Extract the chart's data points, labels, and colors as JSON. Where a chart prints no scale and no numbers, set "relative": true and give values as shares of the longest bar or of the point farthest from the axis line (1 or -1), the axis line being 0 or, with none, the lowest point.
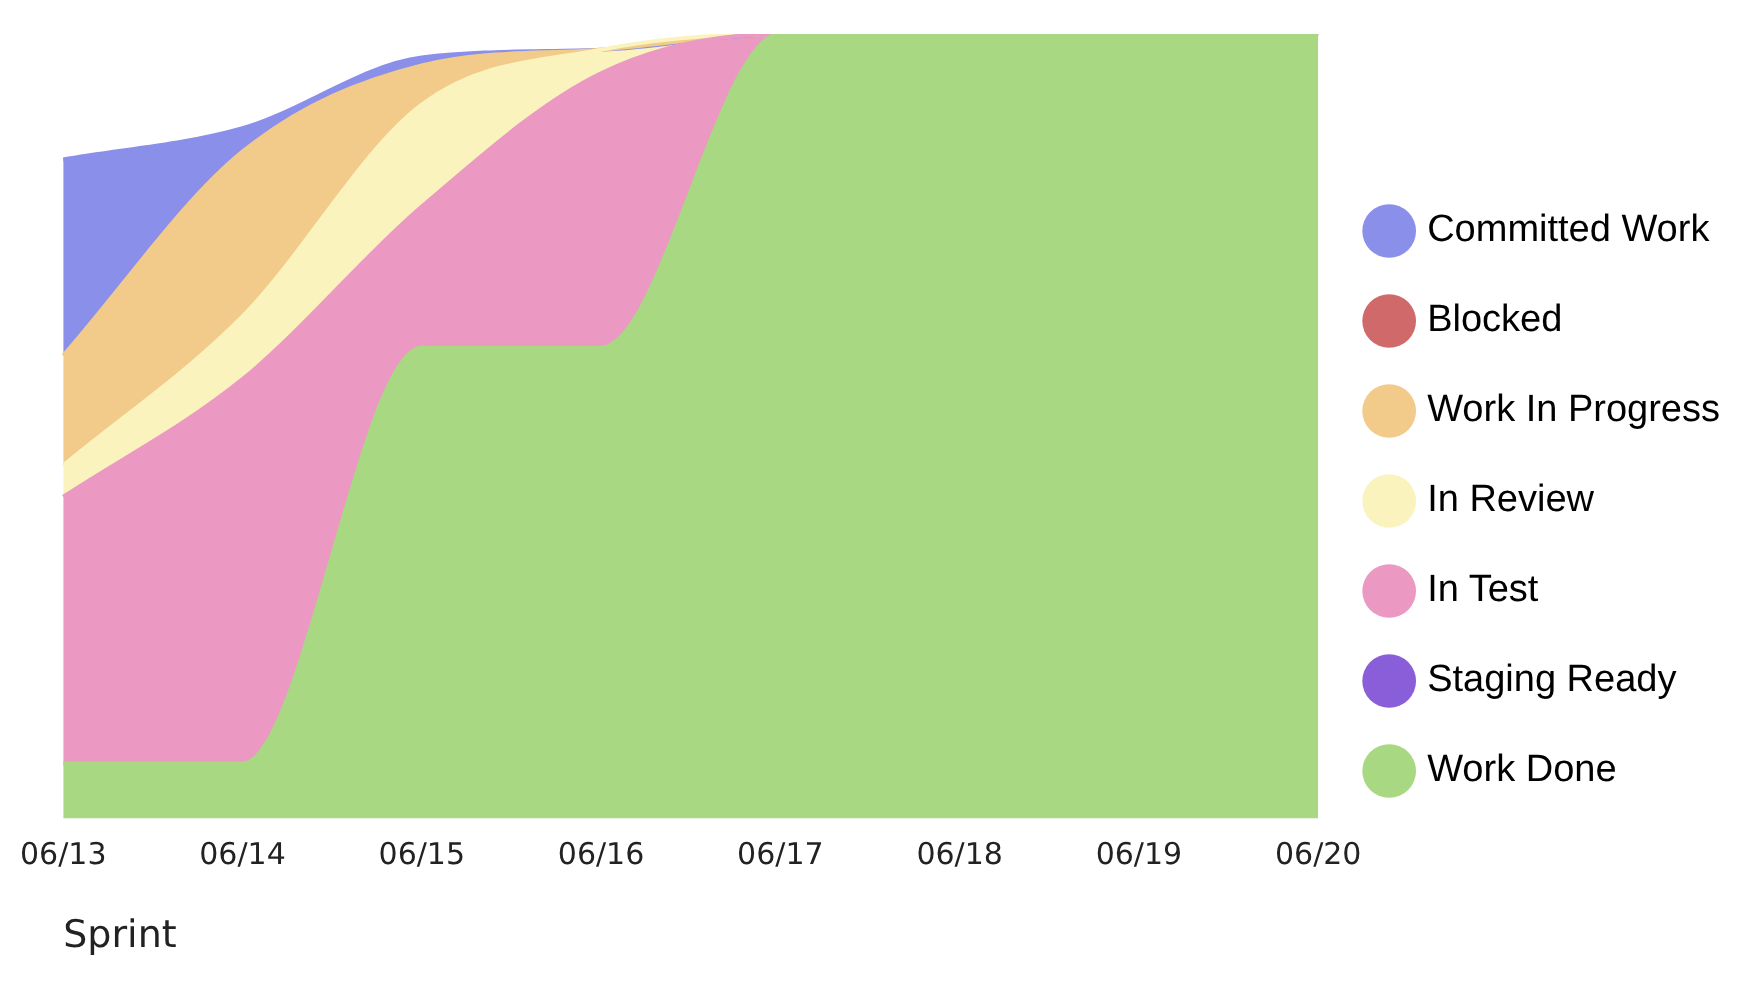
{
  "chart_data": {
    "type": "area",
    "stacked": true,
    "relative": true,
    "xlabel": "Sprint",
    "legend": "right",
    "marker": "none",
    "categories": [
      "06/13",
      "06/14",
      "06/15",
      "06/16",
      "06/17",
      "06/18",
      "06/19",
      "06/20"
    ],
    "series": [
      {
        "name": "Work Done",
        "color": "#a8d882",
        "values": [
          0.07,
          0.07,
          0.6,
          0.6,
          1,
          1,
          1,
          1
        ]
      },
      {
        "name": "Staging Ready",
        "color": "#8a5ed8",
        "values": [
          null,
          null,
          null,
          null,
          null,
          null,
          null,
          null
        ]
      },
      {
        "name": "In Test",
        "color": "#eb99c3",
        "values": [
          0.34,
          0.49,
          0.18,
          0.35,
          0,
          0,
          0,
          0
        ]
      },
      {
        "name": "In Review",
        "color": "#fbf3bd",
        "values": [
          0.04,
          0.08,
          0.13,
          0.03,
          0,
          0,
          0,
          0
        ]
      },
      {
        "name": "Work In Progress",
        "color": "#f2ca8a",
        "values": [
          0.14,
          0.21,
          0.05,
          0,
          0,
          0,
          0,
          0
        ]
      },
      {
        "name": "Blocked",
        "color": "#d06a6a",
        "values": [
          null,
          null,
          null,
          null,
          null,
          null,
          null,
          null
        ]
      },
      {
        "name": "Committed Work",
        "color": "#8a8fea",
        "values": [
          0.25,
          0.03,
          0.01,
          0,
          0,
          0,
          0,
          0
        ]
      }
    ]
  }
}
